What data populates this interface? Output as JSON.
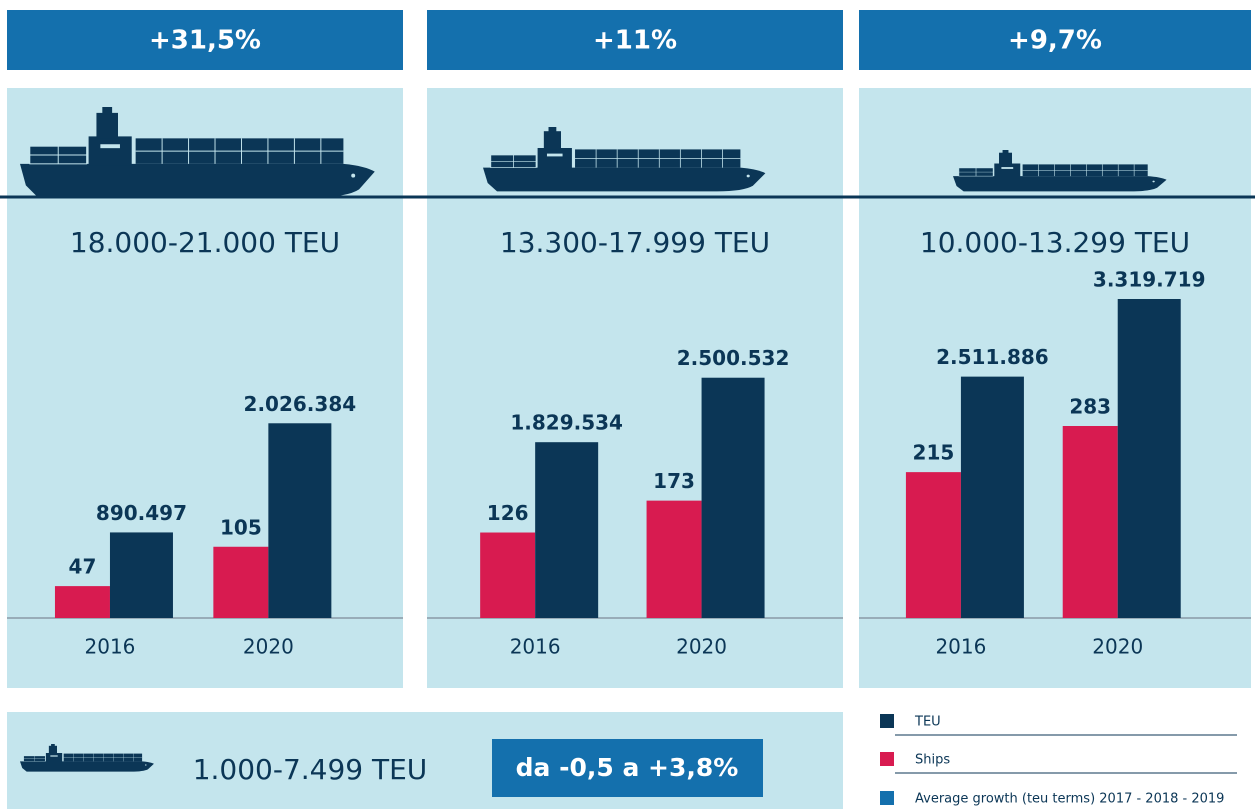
{
  "chart_data": [
    {
      "type": "bar",
      "growth": "+31,5%",
      "title": "18.000-21.000 TEU",
      "categories": [
        "2016",
        "2020"
      ],
      "series": [
        {
          "name": "Ships",
          "color": "#d81b50",
          "values": [
            47,
            105
          ]
        },
        {
          "name": "TEU",
          "color": "#0b3656",
          "values": [
            890497,
            2026384
          ],
          "value_labels": [
            "890.497",
            "2.026.384"
          ]
        }
      ]
    },
    {
      "type": "bar",
      "growth": "+11%",
      "title": "13.300-17.999 TEU",
      "categories": [
        "2016",
        "2020"
      ],
      "series": [
        {
          "color": "#d81b50",
          "values": [
            126,
            173
          ]
        },
        {
          "color": "#0b3656",
          "values": [
            1829534,
            2500532
          ],
          "value_labels": [
            "1.829.534",
            "2.500.532"
          ]
        }
      ]
    },
    {
      "type": "bar",
      "growth": "+9,7%",
      "title": "10.000-13.299 TEU",
      "categories": [
        "2016",
        "2020"
      ],
      "series": [
        {
          "color": "#d81b50",
          "values": [
            215,
            283
          ]
        },
        {
          "color": "#0b3656",
          "values": [
            2511886,
            3319719
          ],
          "value_labels": [
            "2.511.886",
            "3.319.719"
          ]
        }
      ]
    }
  ],
  "footer": {
    "class_label": "1.000-7.499 TEU",
    "growth": "da -0,5 a +3,8%"
  },
  "legend_note": {
    "label": "Average growth (teu terms) 2017 - 2018 - 2019",
    "color": "#1470ad"
  }
}
